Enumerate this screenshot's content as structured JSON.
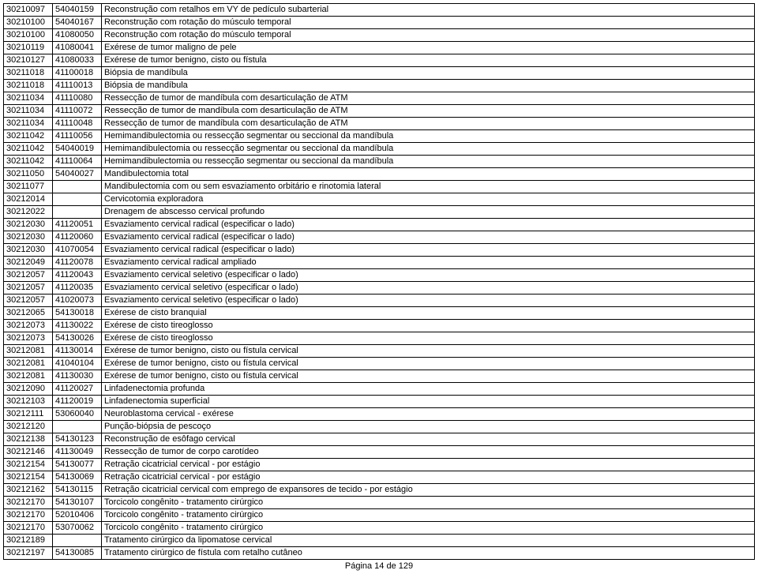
{
  "footer": "Página 14 de 129",
  "rows": [
    {
      "a": "30210097",
      "b": "54040159",
      "c": "Reconstrução com retalhos em VY de pedículo subarterial"
    },
    {
      "a": "30210100",
      "b": "54040167",
      "c": "Reconstrução com rotação do músculo temporal"
    },
    {
      "a": "30210100",
      "b": "41080050",
      "c": "Reconstrução com rotação do músculo temporal"
    },
    {
      "a": "30210119",
      "b": "41080041",
      "c": "Exérese de tumor maligno de pele"
    },
    {
      "a": "30210127",
      "b": "41080033",
      "c": "Exérese de tumor benigno, cisto ou fístula"
    },
    {
      "a": "30211018",
      "b": "41100018",
      "c": "Biópsia de mandíbula"
    },
    {
      "a": "30211018",
      "b": "41110013",
      "c": "Biópsia de mandíbula"
    },
    {
      "a": "30211034",
      "b": "41110080",
      "c": "Ressecção de tumor de mandíbula com desarticulação de ATM"
    },
    {
      "a": "30211034",
      "b": "41110072",
      "c": "Ressecção de tumor de mandíbula com desarticulação de ATM"
    },
    {
      "a": "30211034",
      "b": "41110048",
      "c": "Ressecção de tumor de mandíbula com desarticulação de ATM"
    },
    {
      "a": "30211042",
      "b": "41110056",
      "c": "Hemimandibulectomia ou ressecção segmentar ou seccional da mandíbula"
    },
    {
      "a": "30211042",
      "b": "54040019",
      "c": "Hemimandibulectomia ou ressecção segmentar ou seccional da mandíbula"
    },
    {
      "a": "30211042",
      "b": "41110064",
      "c": "Hemimandibulectomia ou ressecção segmentar ou seccional da mandíbula"
    },
    {
      "a": "30211050",
      "b": "54040027",
      "c": "Mandibulectomia total"
    },
    {
      "a": "30211077",
      "b": "",
      "c": "Mandibulectomia com ou sem esvaziamento orbitário e rinotomia lateral"
    },
    {
      "a": "30212014",
      "b": "",
      "c": "Cervicotomia exploradora"
    },
    {
      "a": "30212022",
      "b": "",
      "c": "Drenagem de abscesso cervical profundo"
    },
    {
      "a": "30212030",
      "b": "41120051",
      "c": "Esvaziamento cervical radical (especificar o lado)"
    },
    {
      "a": "30212030",
      "b": "41120060",
      "c": "Esvaziamento cervical radical (especificar o lado)"
    },
    {
      "a": "30212030",
      "b": "41070054",
      "c": "Esvaziamento cervical radical (especificar o lado)"
    },
    {
      "a": "30212049",
      "b": "41120078",
      "c": "Esvaziamento cervical radical ampliado"
    },
    {
      "a": "30212057",
      "b": "41120043",
      "c": "Esvaziamento cervical seletivo (especificar o lado)"
    },
    {
      "a": "30212057",
      "b": "41120035",
      "c": "Esvaziamento cervical seletivo (especificar o lado)"
    },
    {
      "a": "30212057",
      "b": "41020073",
      "c": "Esvaziamento cervical seletivo (especificar o lado)"
    },
    {
      "a": "30212065",
      "b": "54130018",
      "c": "Exérese de cisto branquial"
    },
    {
      "a": "30212073",
      "b": "41130022",
      "c": "Exérese de cisto tireoglosso"
    },
    {
      "a": "30212073",
      "b": "54130026",
      "c": "Exérese de cisto tireoglosso"
    },
    {
      "a": "30212081",
      "b": "41130014",
      "c": "Exérese de tumor benigno, cisto ou fístula cervical"
    },
    {
      "a": "30212081",
      "b": "41040104",
      "c": "Exérese de tumor benigno, cisto ou fístula cervical"
    },
    {
      "a": "30212081",
      "b": "41130030",
      "c": "Exérese de tumor benigno, cisto ou fístula cervical"
    },
    {
      "a": "30212090",
      "b": "41120027",
      "c": "Linfadenectomia profunda"
    },
    {
      "a": "30212103",
      "b": "41120019",
      "c": "Linfadenectomia superficial"
    },
    {
      "a": "30212111",
      "b": "53060040",
      "c": "Neuroblastoma cervical - exérese"
    },
    {
      "a": "30212120",
      "b": "",
      "c": "Punção-biópsia de pescoço"
    },
    {
      "a": "30212138",
      "b": "54130123",
      "c": "Reconstrução de esôfago cervical"
    },
    {
      "a": "30212146",
      "b": "41130049",
      "c": "Ressecção de tumor de corpo carotídeo"
    },
    {
      "a": "30212154",
      "b": "54130077",
      "c": "Retração cicatricial cervical - por estágio"
    },
    {
      "a": "30212154",
      "b": "54130069",
      "c": "Retração cicatricial cervical - por estágio"
    },
    {
      "a": "30212162",
      "b": "54130115",
      "c": "Retração cicatricial cervical com emprego de expansores de tecido - por estágio"
    },
    {
      "a": "30212170",
      "b": "54130107",
      "c": "Torcicolo congênito - tratamento cirúrgico"
    },
    {
      "a": "30212170",
      "b": "52010406",
      "c": "Torcicolo congênito - tratamento cirúrgico"
    },
    {
      "a": "30212170",
      "b": "53070062",
      "c": "Torcicolo congênito - tratamento cirúrgico"
    },
    {
      "a": "30212189",
      "b": "",
      "c": "Tratamento cirúrgico da lipomatose cervical"
    },
    {
      "a": "30212197",
      "b": "54130085",
      "c": "Tratamento cirúrgico de fístula com retalho cutâneo"
    }
  ]
}
